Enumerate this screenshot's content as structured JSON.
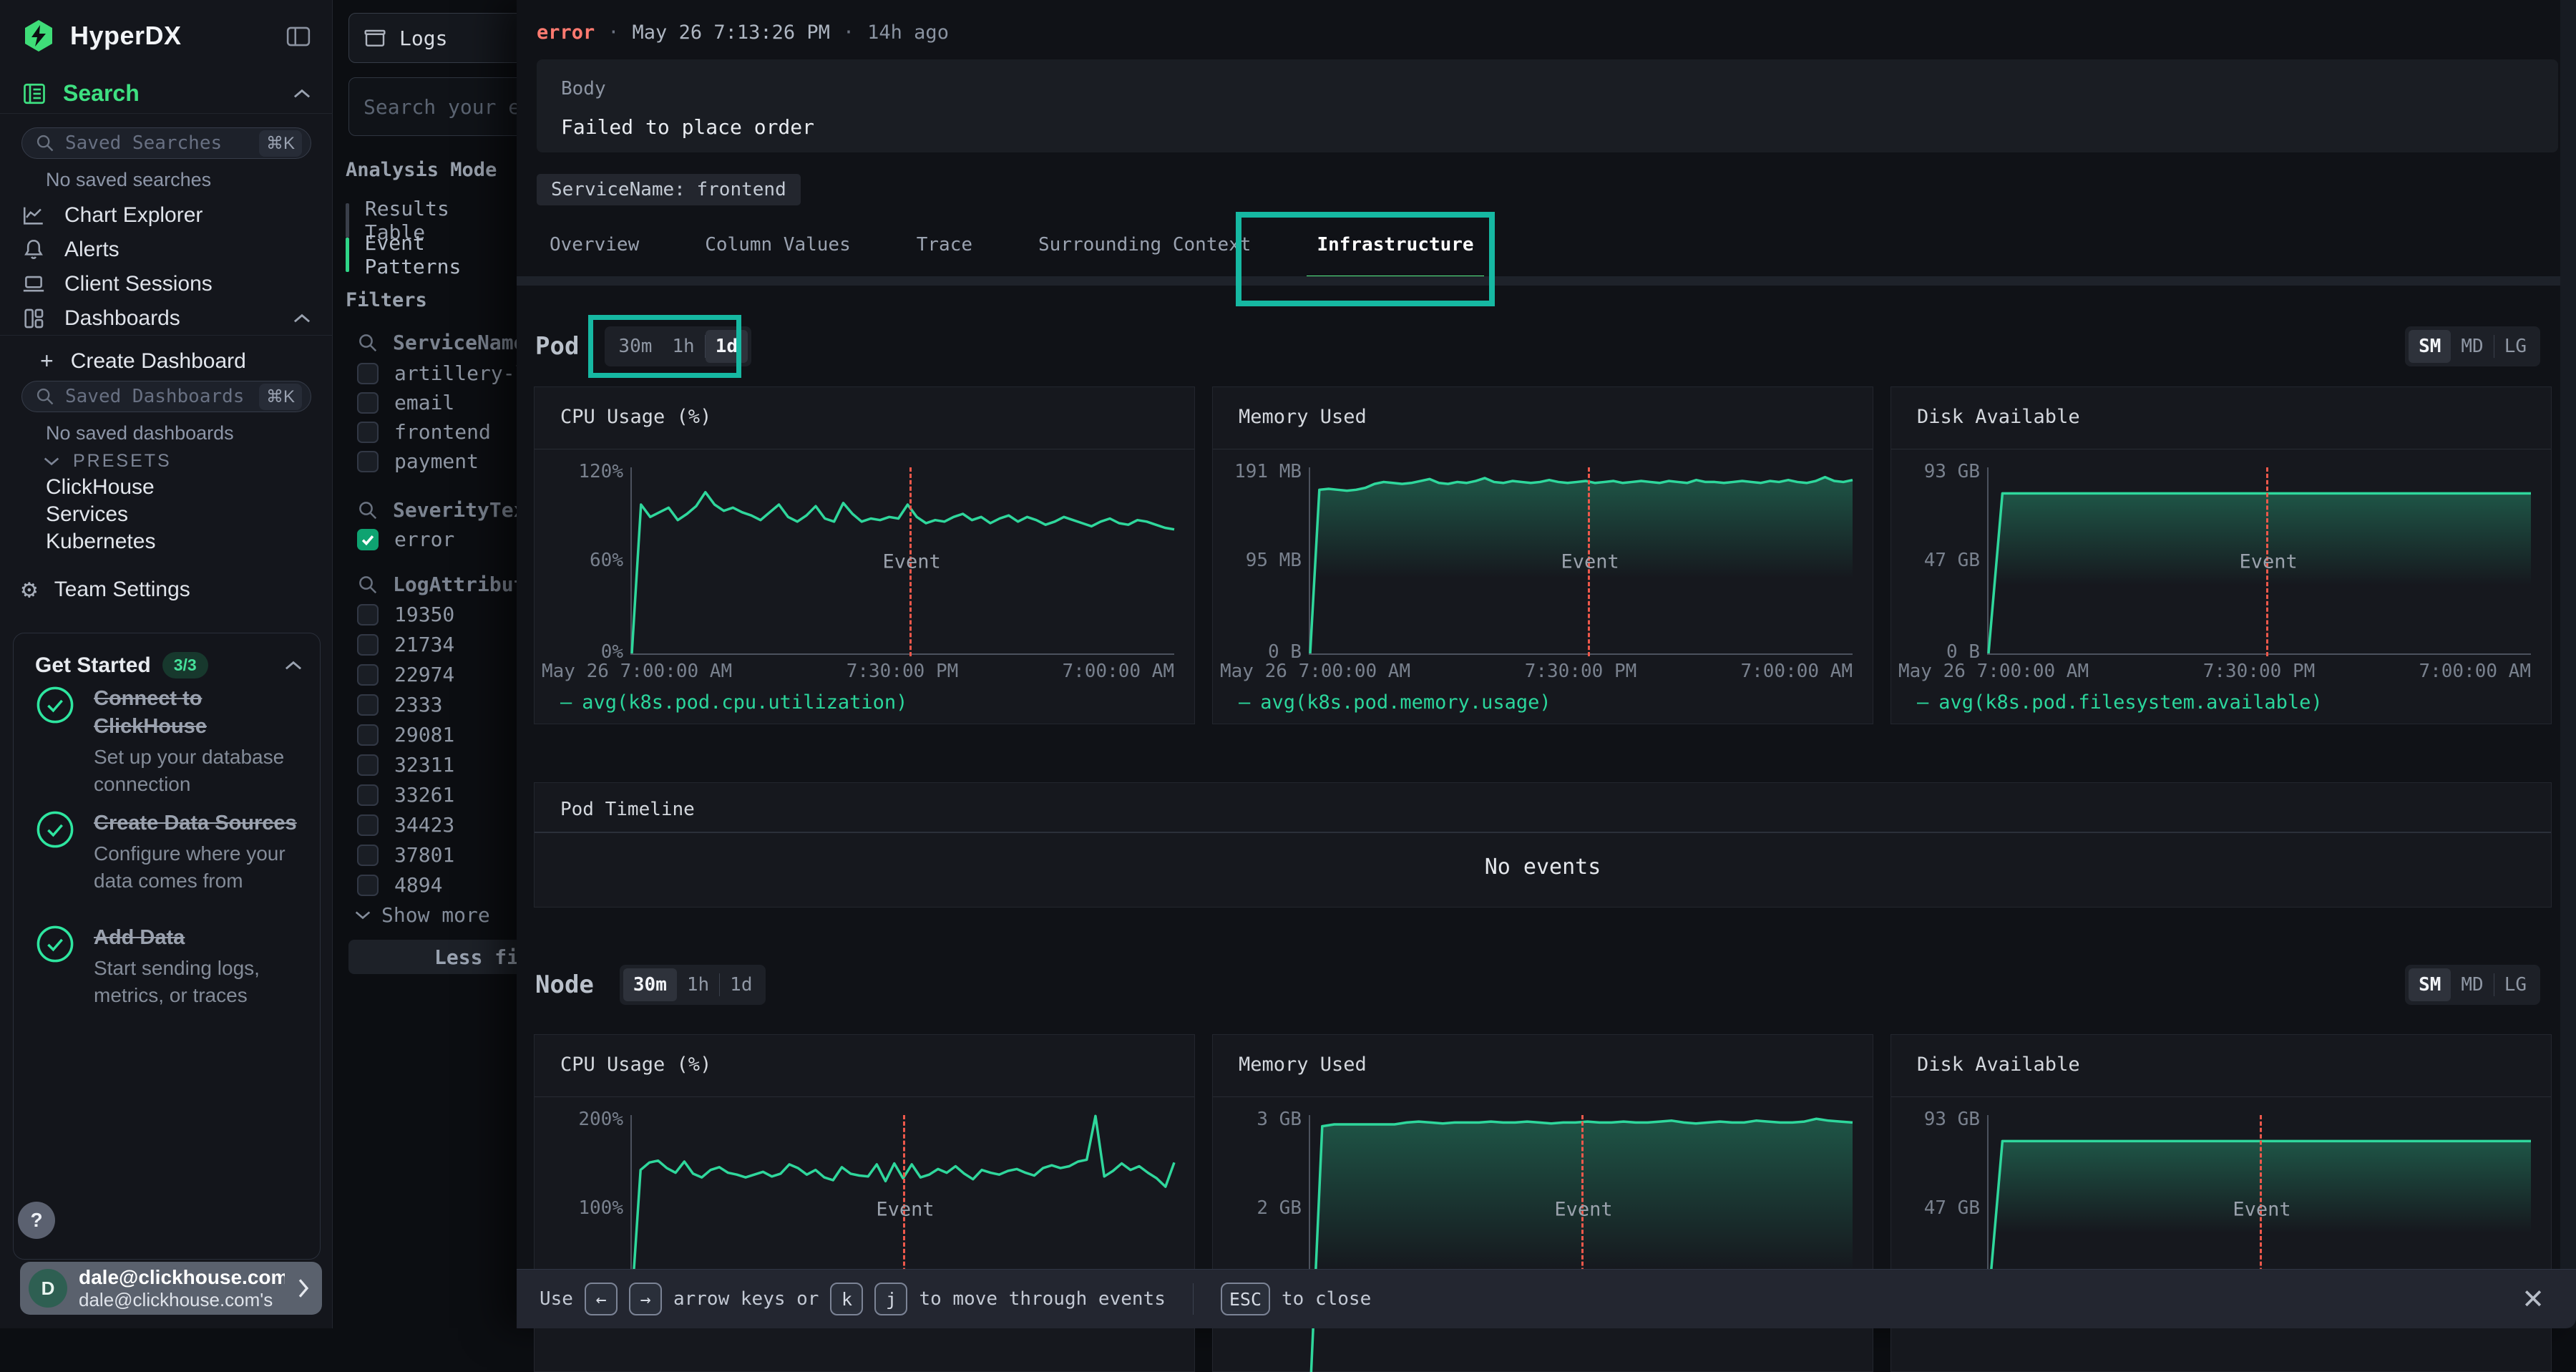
{
  "colors": {
    "accent_green": "#3ee081",
    "chart_line": "#2fd79c",
    "error_red": "#ff7a70",
    "event_line_red": "#ee584b",
    "annotation_teal": "#16b8a2",
    "active_underline": "#57f287"
  },
  "sidebar": {
    "logo_text": "HyperDX",
    "search": {
      "label": "Search"
    },
    "saved_searches_placeholder": "Saved Searches",
    "saved_searches_kbd": "⌘K",
    "no_saved_searches": "No saved searches",
    "nav": [
      {
        "label": "Chart Explorer"
      },
      {
        "label": "Alerts"
      },
      {
        "label": "Client Sessions"
      },
      {
        "label": "Dashboards"
      }
    ],
    "create_dashboard_plus": "+",
    "create_dashboard": "Create Dashboard",
    "saved_dashboards_placeholder": "Saved Dashboards",
    "saved_dashboards_kbd": "⌘K",
    "no_saved_dashboards": "No saved dashboards",
    "presets_label": "PRESETS",
    "presets": [
      {
        "label": "ClickHouse"
      },
      {
        "label": "Services"
      },
      {
        "label": "Kubernetes"
      }
    ],
    "team_settings": "Team Settings",
    "get_started": {
      "title": "Get Started",
      "badge": "3/3",
      "items": [
        {
          "title": "Connect to ClickHouse",
          "desc": "Set up your database connection"
        },
        {
          "title": "Create Data Sources",
          "desc": "Configure where your data comes from"
        },
        {
          "title": "Add Data",
          "desc": "Start sending logs, metrics, or traces"
        }
      ]
    },
    "help_label": "?",
    "profile": {
      "initial": "D",
      "email": "dale@clickhouse.com",
      "sub": "dale@clickhouse.com's"
    }
  },
  "filter_panel": {
    "source_label": "Logs",
    "search_placeholder": "Search your ev",
    "analysis_mode_label": "Analysis Mode",
    "modes": [
      {
        "label": "Results Table",
        "active": false
      },
      {
        "label": "Event Patterns",
        "active": true
      }
    ],
    "filters_label": "Filters",
    "groups": [
      {
        "name": "ServiceName",
        "options": [
          {
            "label": "artillery-loa",
            "checked": false
          },
          {
            "label": "email",
            "checked": false
          },
          {
            "label": "frontend",
            "checked": false
          },
          {
            "label": "payment",
            "checked": false
          }
        ]
      },
      {
        "name": "SeverityText",
        "options": [
          {
            "label": "error",
            "checked": true
          }
        ]
      },
      {
        "name": "LogAttributes",
        "options": [
          {
            "label": "19350",
            "checked": false
          },
          {
            "label": "21734",
            "checked": false
          },
          {
            "label": "22974",
            "checked": false
          },
          {
            "label": "2333",
            "checked": false
          },
          {
            "label": "29081",
            "checked": false
          },
          {
            "label": "32311",
            "checked": false
          },
          {
            "label": "33261",
            "checked": false
          },
          {
            "label": "34423",
            "checked": false
          },
          {
            "label": "37801",
            "checked": false
          },
          {
            "label": "4894",
            "checked": false
          }
        ]
      }
    ],
    "show_more": "Show more",
    "less_filters": "Less fil"
  },
  "event_panel": {
    "severity": "error",
    "sep": "·",
    "timestamp": "May 26 7:13:26 PM",
    "age": "14h ago",
    "body_label": "Body",
    "body_text": "Failed to place order",
    "service_chip": "ServiceName: frontend",
    "tabs": [
      {
        "label": "Overview",
        "active": false
      },
      {
        "label": "Column Values",
        "active": false
      },
      {
        "label": "Trace",
        "active": false
      },
      {
        "label": "Surrounding Context",
        "active": false
      },
      {
        "label": "Infrastructure",
        "active": true
      }
    ],
    "pod_section": {
      "title": "Pod",
      "ranges": [
        "30m",
        "1h",
        "1d"
      ],
      "active_range": "1d",
      "sizes": [
        "SM",
        "MD",
        "LG"
      ],
      "active_size": "SM"
    },
    "node_section": {
      "title": "Node",
      "ranges": [
        "30m",
        "1h",
        "1d"
      ],
      "active_range": "30m",
      "sizes": [
        "SM",
        "MD",
        "LG"
      ],
      "active_size": "SM"
    },
    "timeline": {
      "title": "Pod Timeline",
      "empty": "No events"
    },
    "footer": {
      "use_label": "Use",
      "arrow_left": "←",
      "arrow_right": "→",
      "arrows_text": "arrow keys or",
      "key_k": "k",
      "key_j": "j",
      "move_text": "to move through events",
      "esc_key": "ESC",
      "close_text": "to close"
    }
  },
  "chart_data": [
    {
      "type": "line",
      "title": "CPU Usage (%)",
      "section": "Pod",
      "y_ticks": [
        "120%",
        "60%",
        "0%"
      ],
      "x_ticks": [
        "May 26 7:00:00 AM",
        "7:30:00 PM",
        "7:00:00 AM"
      ],
      "ylim": [
        0,
        120
      ],
      "fill": false,
      "event_label": "Event",
      "event_x_frac": 0.512,
      "legend": "avg(k8s.pod.cpu.utilization)",
      "legend_dash": "—",
      "values": [
        0,
        96,
        88,
        91,
        94,
        86,
        90,
        95,
        104,
        96,
        92,
        94,
        91,
        89,
        86,
        91,
        96,
        88,
        85,
        89,
        95,
        87,
        85,
        97,
        90,
        85,
        87,
        86,
        88,
        87,
        96,
        88,
        84,
        86,
        85,
        88,
        90,
        86,
        88,
        84,
        87,
        89,
        85,
        88,
        86,
        83,
        85,
        88,
        86,
        84,
        82,
        85,
        87,
        84,
        83,
        86,
        85,
        83,
        81,
        80
      ]
    },
    {
      "type": "line",
      "title": "Memory Used",
      "section": "Pod",
      "y_ticks": [
        "191 MB",
        "95 MB",
        "0 B"
      ],
      "x_ticks": [
        "May 26 7:00:00 AM",
        "7:30:00 PM",
        "7:00:00 AM"
      ],
      "ylim": [
        0,
        191
      ],
      "fill": true,
      "event_label": "Event",
      "event_x_frac": 0.512,
      "legend": "avg(k8s.pod.memory.usage)",
      "legend_dash": "—",
      "values": [
        0,
        168,
        169,
        168,
        167,
        168,
        170,
        174,
        176,
        175,
        174,
        175,
        177,
        179,
        175,
        174,
        176,
        175,
        177,
        180,
        176,
        175,
        177,
        176,
        175,
        176,
        178,
        176,
        175,
        176,
        177,
        175,
        176,
        177,
        175,
        176,
        177,
        176,
        175,
        177,
        176,
        175,
        178,
        176,
        176,
        175,
        176,
        177,
        176,
        175,
        177,
        176,
        178,
        176,
        175,
        177,
        181,
        177,
        176,
        178
      ]
    },
    {
      "type": "line",
      "title": "Disk Available",
      "section": "Pod",
      "y_ticks": [
        "93 GB",
        "47 GB",
        "0 B"
      ],
      "x_ticks": [
        "May 26 7:00:00 AM",
        "7:30:00 PM",
        "7:00:00 AM"
      ],
      "ylim": [
        0,
        93
      ],
      "fill": true,
      "event_label": "Event",
      "event_x_frac": 0.512,
      "legend": "avg(k8s.pod.filesystem.available)",
      "legend_dash": "—",
      "values": [
        0,
        80,
        80,
        80,
        80,
        80,
        80,
        80,
        80,
        80,
        80,
        80,
        80,
        80,
        80,
        80,
        80,
        80,
        80,
        80,
        80,
        80,
        80,
        80,
        80,
        80,
        80,
        80,
        80,
        80,
        80,
        80,
        80,
        80,
        80,
        80,
        80,
        80,
        80,
        80
      ]
    },
    {
      "type": "line",
      "title": "CPU Usage (%)",
      "section": "Node",
      "y_ticks": [
        "200%",
        "100%",
        ""
      ],
      "x_ticks": [
        "",
        "",
        ""
      ],
      "ylim": [
        0,
        200
      ],
      "fill": false,
      "event_label": "Event",
      "event_x_frac": 0.5,
      "legend": "",
      "legend_dash": "",
      "values": [
        0,
        141,
        149,
        151,
        143,
        138,
        150,
        137,
        133,
        141,
        144,
        138,
        136,
        133,
        136,
        139,
        134,
        137,
        147,
        143,
        136,
        141,
        133,
        130,
        144,
        137,
        135,
        134,
        147,
        129,
        148,
        132,
        147,
        133,
        136,
        142,
        138,
        145,
        137,
        131,
        141,
        138,
        136,
        140,
        142,
        138,
        135,
        143,
        146,
        143,
        145,
        150,
        152,
        199,
        134,
        140,
        148,
        141,
        145,
        138,
        132,
        123,
        149
      ]
    },
    {
      "type": "line",
      "title": "Memory Used",
      "section": "Node",
      "y_ticks": [
        "3 GB",
        "2 GB",
        ""
      ],
      "x_ticks": [
        "",
        "",
        ""
      ],
      "ylim": [
        1,
        3
      ],
      "fill": true,
      "event_label": "Event",
      "event_x_frac": 0.5,
      "legend": "",
      "legend_dash": "",
      "values": [
        0,
        2.88,
        2.9,
        2.9,
        2.9,
        2.9,
        2.9,
        2.9,
        2.92,
        2.93,
        2.92,
        2.91,
        2.92,
        2.92,
        2.92,
        2.93,
        2.92,
        2.92,
        2.93,
        2.92,
        2.91,
        2.92,
        2.92,
        2.93,
        2.92,
        2.92,
        2.93,
        2.92,
        2.92,
        2.93,
        2.94,
        2.92,
        2.91,
        2.92,
        2.93,
        2.92,
        2.92,
        2.94,
        2.93,
        2.92,
        2.92,
        2.93,
        2.96,
        2.94,
        2.93,
        2.92
      ]
    },
    {
      "type": "line",
      "title": "Disk Available",
      "section": "Node",
      "y_ticks": [
        "93 GB",
        "47 GB",
        ""
      ],
      "x_ticks": [
        "",
        "",
        ""
      ],
      "ylim": [
        0,
        93
      ],
      "fill": true,
      "event_label": "Event",
      "event_x_frac": 0.5,
      "legend": "",
      "legend_dash": "",
      "values": [
        0,
        80,
        80,
        80,
        80,
        80,
        80,
        80,
        80,
        80,
        80,
        80,
        80,
        80,
        80,
        80,
        80,
        80,
        80,
        80,
        80,
        80,
        80,
        80,
        80,
        80,
        80,
        80,
        80,
        80,
        80,
        80,
        80,
        80,
        80,
        80,
        80,
        80,
        80,
        80
      ]
    }
  ]
}
